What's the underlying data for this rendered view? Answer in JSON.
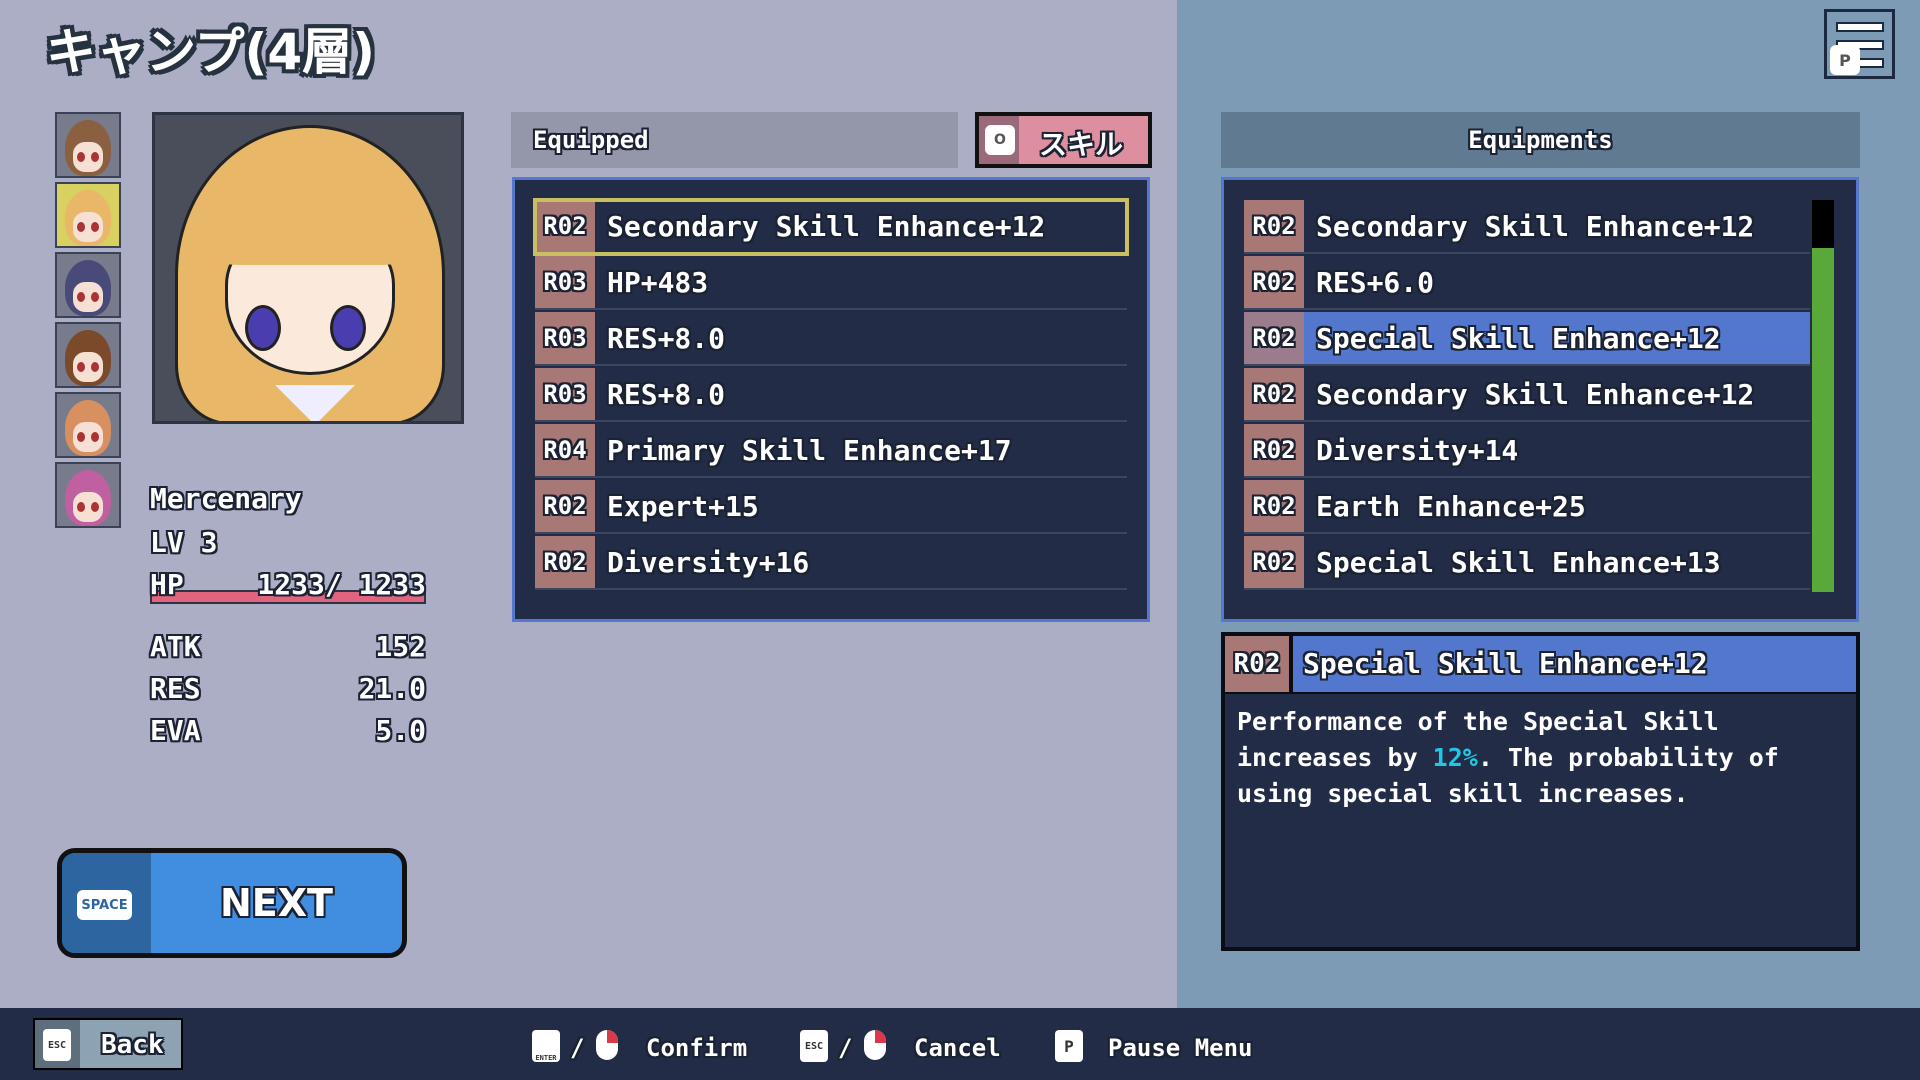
{
  "title": "キャンプ(4層)",
  "party": {
    "portraits": [
      "brown-hair-girl",
      "blonde-girl",
      "purple-hair-boy",
      "brown-hair-boy",
      "orange-hair-girl",
      "pink-hair-girl"
    ],
    "selected_index": 1
  },
  "character": {
    "class": "Mercenary",
    "level": "LV 3",
    "hp_label": "HP",
    "hp_value": "1233/ 1233",
    "hp_fraction": 1.0,
    "stats": [
      {
        "label": "ATK",
        "value": "152"
      },
      {
        "label": "RES",
        "value": "21.0"
      },
      {
        "label": "EVA",
        "value": "5.0"
      }
    ]
  },
  "next_button": {
    "key": "SPACE",
    "label": "NEXT"
  },
  "equipped": {
    "header": "Equipped",
    "skill_button": {
      "key": "O",
      "label": "スキル"
    },
    "items": [
      {
        "rarity": "R02",
        "name": "Secondary Skill Enhance+12"
      },
      {
        "rarity": "R03",
        "name": "HP+483"
      },
      {
        "rarity": "R03",
        "name": "RES+8.0"
      },
      {
        "rarity": "R03",
        "name": "RES+8.0"
      },
      {
        "rarity": "R04",
        "name": "Primary Skill Enhance+17"
      },
      {
        "rarity": "R02",
        "name": "Expert+15"
      },
      {
        "rarity": "R02",
        "name": "Diversity+16"
      }
    ],
    "focused_index": 0
  },
  "equipments": {
    "header": "Equipments",
    "items": [
      {
        "rarity": "R02",
        "name": "Secondary Skill Enhance+12"
      },
      {
        "rarity": "R02",
        "name": "RES+6.0"
      },
      {
        "rarity": "R02",
        "name": "Special Skill Enhance+12"
      },
      {
        "rarity": "R02",
        "name": "Secondary Skill Enhance+12"
      },
      {
        "rarity": "R02",
        "name": "Diversity+14"
      },
      {
        "rarity": "R02",
        "name": "Earth Enhance+25"
      },
      {
        "rarity": "R02",
        "name": "Special Skill Enhance+13"
      }
    ],
    "selected_index": 2
  },
  "detail": {
    "rarity": "R02",
    "name": "Special Skill Enhance+12",
    "desc_before": "Performance of the Special Skill increases by ",
    "desc_highlight": "12%",
    "desc_after": ". The probability of using special skill increases."
  },
  "footer": {
    "back_key": "ESC",
    "back": "Back",
    "confirm_key": "ENTER",
    "confirm": "Confirm",
    "cancel_key": "ESC",
    "cancel": "Cancel",
    "pause_key": "P",
    "pause": "Pause Menu",
    "slash": "/"
  },
  "menu_key": "P",
  "colors": {
    "highlight": "#20c8e8",
    "selected_row": "#5277cc",
    "hp_bar": "#e0647e",
    "scrollbar": "#5aa83a"
  }
}
